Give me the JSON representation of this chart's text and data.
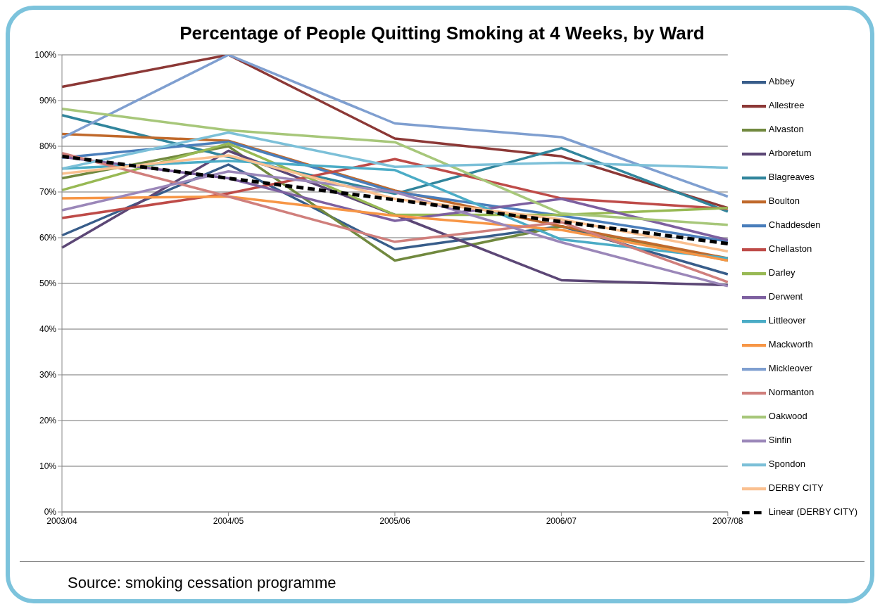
{
  "chart_data": {
    "type": "line",
    "title": "Percentage of People Quitting Smoking at 4 Weeks, by Ward",
    "categories": [
      "2003/04",
      "2004/05",
      "2005/06",
      "2006/07",
      "2007/08"
    ],
    "ylim": [
      0,
      100
    ],
    "yticks": [
      {
        "value": 0,
        "label": "0%"
      },
      {
        "value": 10,
        "label": "10%"
      },
      {
        "value": 20,
        "label": "20%"
      },
      {
        "value": 30,
        "label": "30%"
      },
      {
        "value": 40,
        "label": "40%"
      },
      {
        "value": 50,
        "label": "50%"
      },
      {
        "value": 60,
        "label": "60%"
      },
      {
        "value": 70,
        "label": "70%"
      },
      {
        "value": 80,
        "label": "80%"
      },
      {
        "value": 90,
        "label": "90%"
      },
      {
        "value": 100,
        "label": "100%"
      }
    ],
    "grid": "y",
    "legend": "right",
    "marker": "none",
    "line_style": "solid",
    "series": [
      {
        "name": "Abbey",
        "color": "#385d8a",
        "values": [
          60.5,
          76,
          57.5,
          62.5,
          52
        ]
      },
      {
        "name": "Allestree",
        "color": "#8c3836",
        "values": [
          93,
          100,
          81.7,
          77.8,
          66.5
        ]
      },
      {
        "name": "Alvaston",
        "color": "#71893f",
        "values": [
          73,
          80,
          55,
          62.5,
          55
        ]
      },
      {
        "name": "Arboretum",
        "color": "#5c4776",
        "values": [
          57.8,
          79,
          65,
          50.7,
          49.6
        ]
      },
      {
        "name": "Blagreaves",
        "color": "#31859c",
        "values": [
          86.8,
          77.7,
          69.6,
          79.6,
          65.7
        ]
      },
      {
        "name": "Boulton",
        "color": "#c0692b",
        "values": [
          82.7,
          81.2,
          70.3,
          62.5,
          55.5
        ]
      },
      {
        "name": "Chaddesden",
        "color": "#4a7ebb",
        "values": [
          77.5,
          81,
          70,
          64.8,
          59.2
        ]
      },
      {
        "name": "Chellaston",
        "color": "#be4b48",
        "values": [
          64.3,
          69.7,
          77.2,
          68.6,
          66.3
        ]
      },
      {
        "name": "Darley",
        "color": "#98b954",
        "values": [
          70.4,
          80.6,
          65,
          65,
          66.5
        ]
      },
      {
        "name": "Derwent",
        "color": "#7d60a0",
        "values": [
          77.7,
          73,
          63.7,
          68.5,
          59.5
        ]
      },
      {
        "name": "Littleover",
        "color": "#4bacc6",
        "values": [
          75.1,
          76.8,
          74.8,
          59.6,
          55.5
        ]
      },
      {
        "name": "Mackworth",
        "color": "#f79646",
        "values": [
          68.6,
          69,
          64.8,
          61.7,
          55
        ]
      },
      {
        "name": "Mickleover",
        "color": "#7f9fd0",
        "values": [
          81.8,
          100,
          85,
          82,
          69
        ]
      },
      {
        "name": "Normanton",
        "color": "#d07f7c",
        "values": [
          78.5,
          69,
          59.1,
          63.4,
          50.3
        ]
      },
      {
        "name": "Oakwood",
        "color": "#a7c77a",
        "values": [
          88.2,
          83.5,
          80.9,
          65.3,
          62.8
        ]
      },
      {
        "name": "Sinfin",
        "color": "#9b87b9",
        "values": [
          66,
          74.5,
          70,
          59,
          49.4
        ]
      },
      {
        "name": "Spondon",
        "color": "#7cc0d8",
        "values": [
          75.1,
          83,
          75.5,
          76.4,
          75.3
        ]
      },
      {
        "name": "DERBY CITY",
        "color": "#fac090",
        "values": [
          74,
          78,
          68.5,
          64,
          57
        ]
      },
      {
        "name": "Linear (DERBY CITY)",
        "color": "#000000",
        "line_style": "dashed",
        "values": [
          77.8,
          73.0,
          68.3,
          63.5,
          58.7
        ]
      }
    ],
    "annotations": [
      "Source: smoking cessation programme"
    ]
  }
}
